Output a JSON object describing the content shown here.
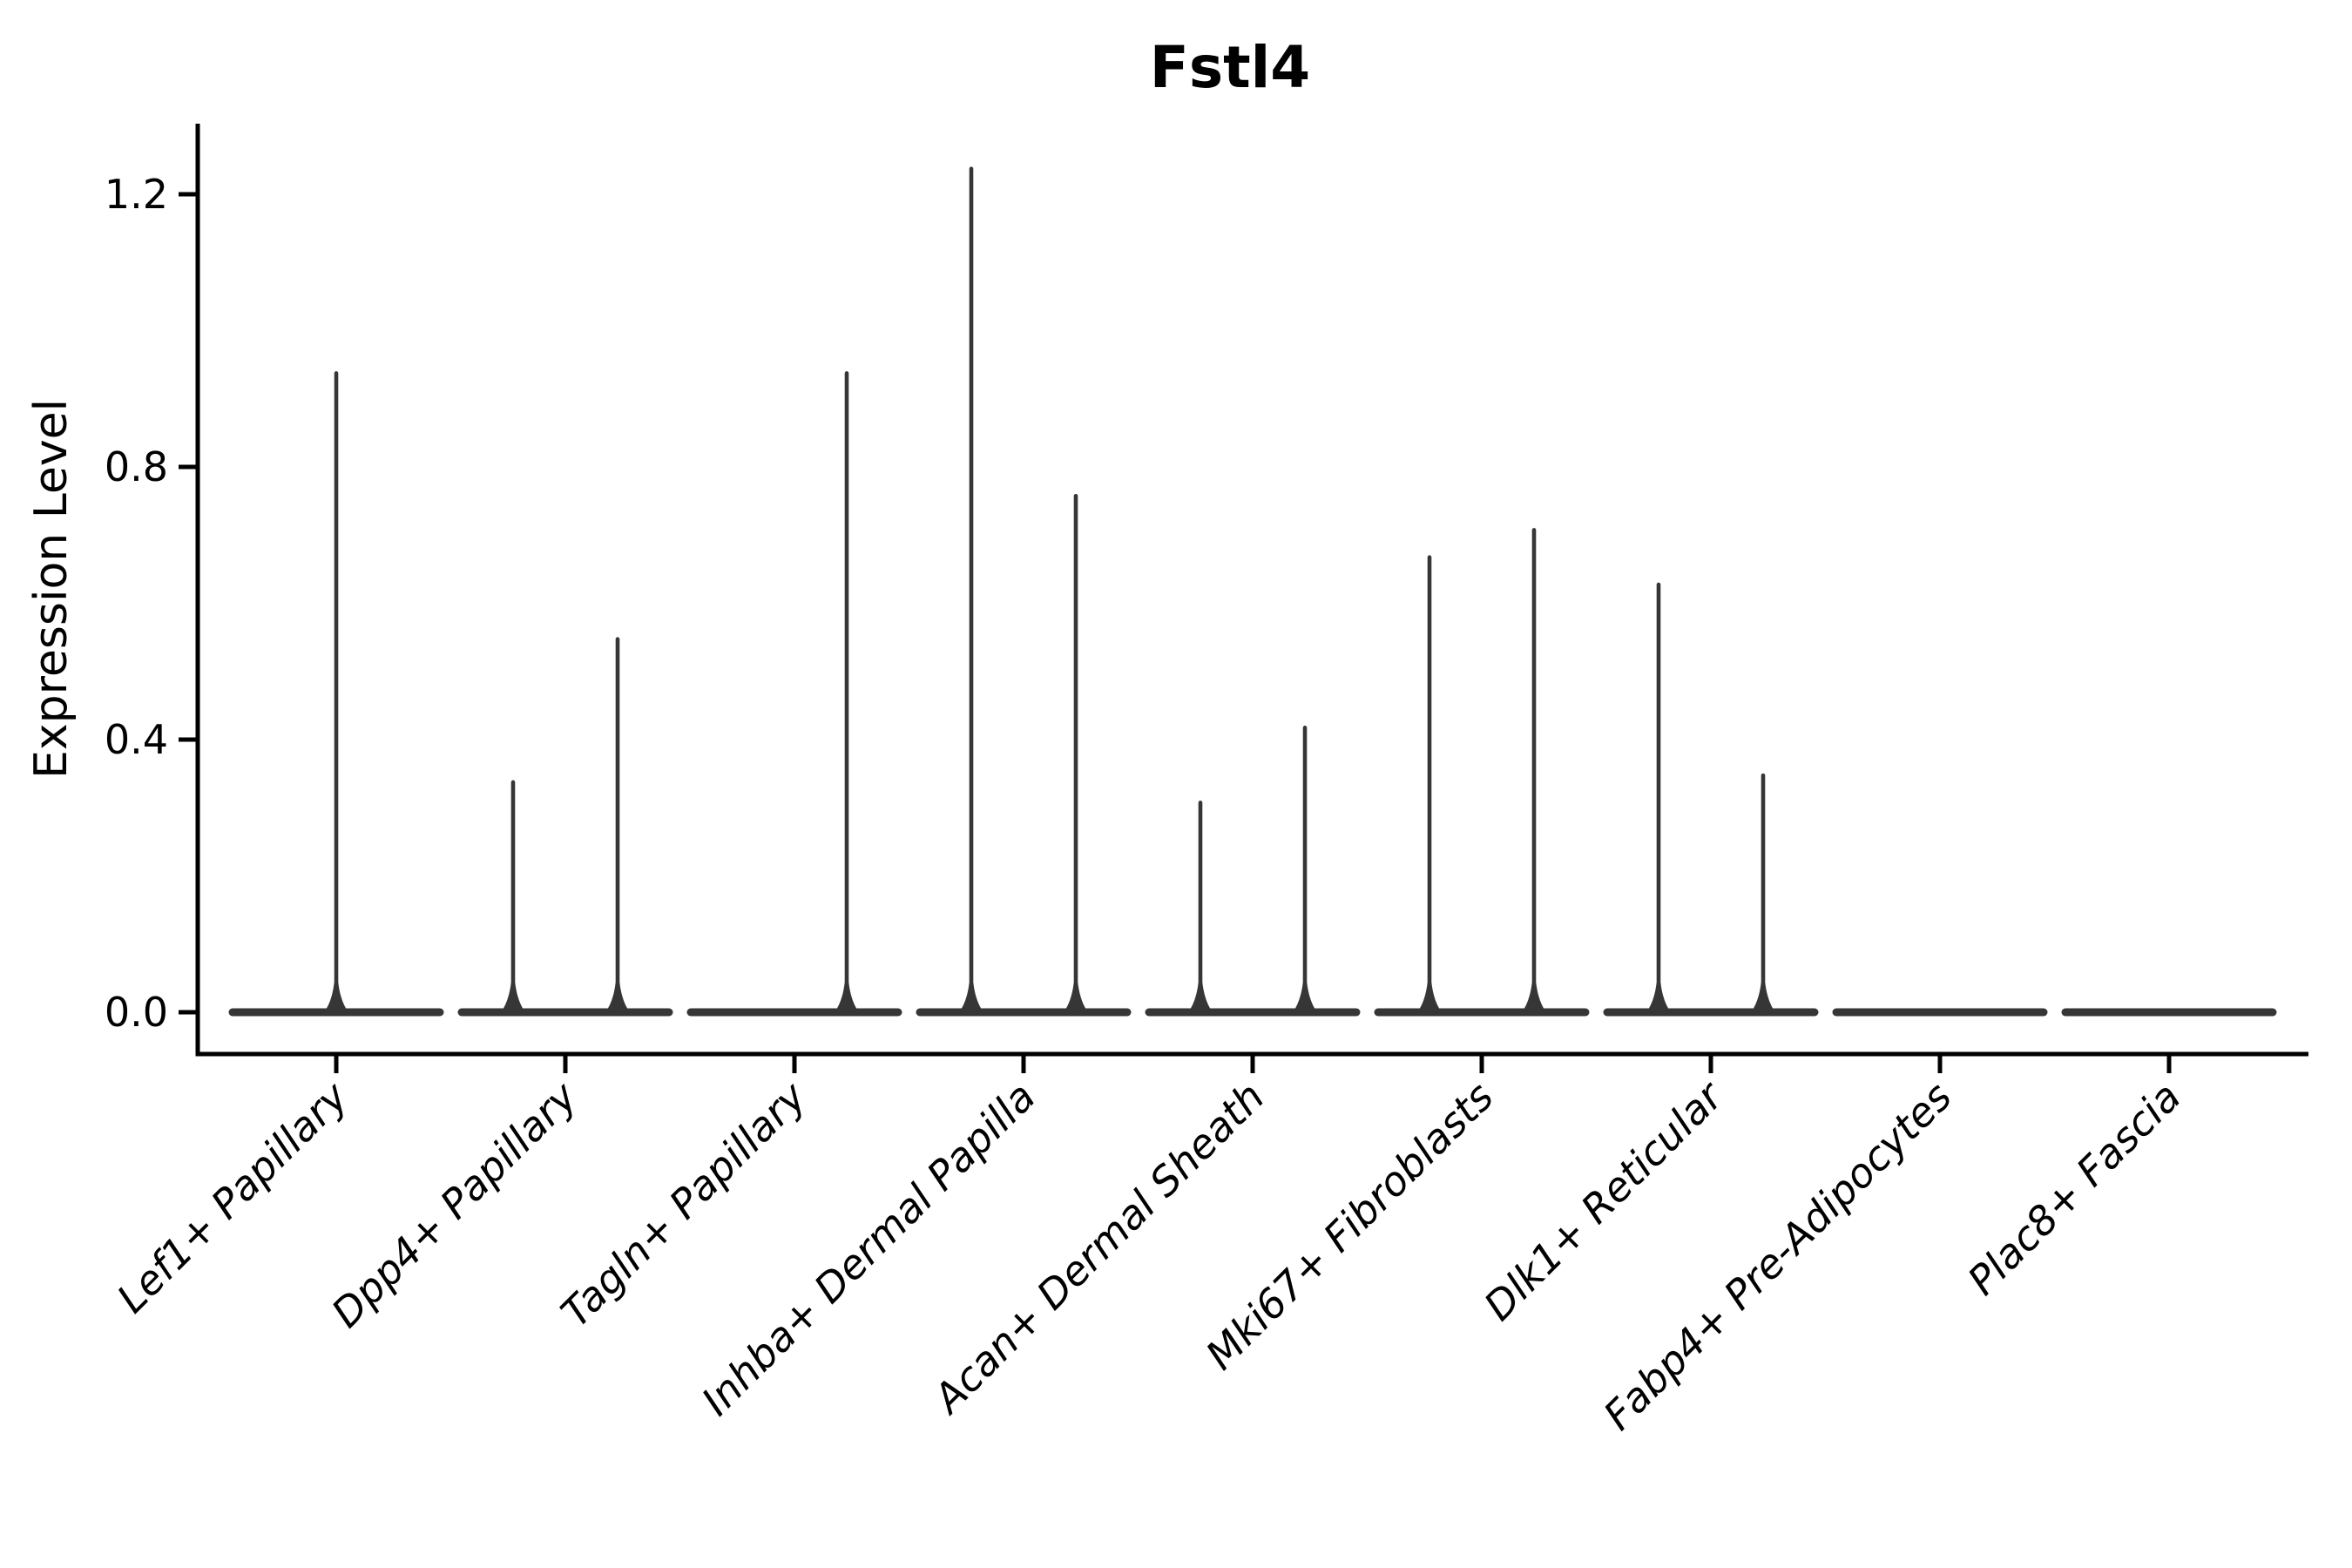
{
  "figure": {
    "background": "#ffffff",
    "axis_color": "#000000",
    "violin_color": "#363636"
  },
  "chart_data": {
    "type": "violin",
    "title": "Fstl4",
    "ylabel": "Expression Level",
    "xlabel": "",
    "grid": false,
    "legend": "none",
    "ylim": [
      -0.06,
      1.3
    ],
    "ytick_values": [
      0.0,
      0.4,
      0.8,
      1.2
    ],
    "ytick_labels": [
      "0.0",
      "0.4",
      "0.8",
      "1.2"
    ],
    "baseline_value": 0.0,
    "categories": [
      "Lef1+ Papillary",
      "Dpp4+ Papillary",
      "Tagln+ Papillary",
      "Inhba+ Dermal Papilla",
      "Acan+ Dermal Sheath",
      "Mki67+ Fibroblasts",
      "Dlk1+ Reticular",
      "Fabp4+ Pre-Adipocytes",
      "Plac8+ Fascia"
    ],
    "violins": [
      {
        "category": "Lef1+ Papillary",
        "spikes": [
          {
            "slot": "center",
            "max": 0.94
          }
        ]
      },
      {
        "category": "Dpp4+ Papillary",
        "spikes": [
          {
            "slot": "left",
            "max": 0.34
          },
          {
            "slot": "right",
            "max": 0.55
          }
        ]
      },
      {
        "category": "Tagln+ Papillary",
        "spikes": [
          {
            "slot": "right",
            "max": 0.94
          }
        ]
      },
      {
        "category": "Inhba+ Dermal Papilla",
        "spikes": [
          {
            "slot": "left",
            "max": 1.24
          },
          {
            "slot": "right",
            "max": 0.76
          }
        ]
      },
      {
        "category": "Acan+ Dermal Sheath",
        "spikes": [
          {
            "slot": "left",
            "max": 0.31
          },
          {
            "slot": "right",
            "max": 0.42
          }
        ]
      },
      {
        "category": "Mki67+ Fibroblasts",
        "spikes": [
          {
            "slot": "left",
            "max": 0.67
          },
          {
            "slot": "right",
            "max": 0.71
          }
        ]
      },
      {
        "category": "Dlk1+ Reticular",
        "spikes": [
          {
            "slot": "left",
            "max": 0.63
          },
          {
            "slot": "right",
            "max": 0.35
          }
        ]
      },
      {
        "category": "Fabp4+ Pre-Adipocytes",
        "spikes": []
      },
      {
        "category": "Plac8+ Fascia",
        "spikes": []
      }
    ]
  }
}
